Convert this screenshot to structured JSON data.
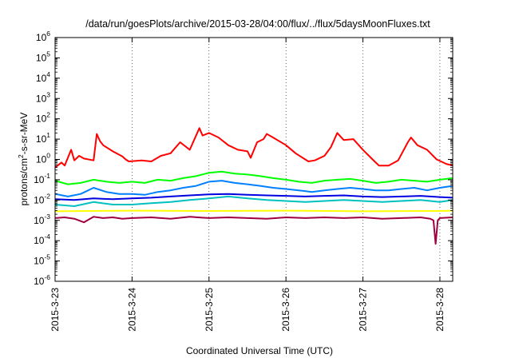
{
  "chart_data": {
    "type": "line",
    "title": "/data/run/goesPlots/archive/2015-03-28/04:00/flux/../flux/5daysMoonFluxes.txt",
    "xlabel": "Coordinated Universal Time (UTC)",
    "ylabel_parts": {
      "pre": "protons/cm",
      "sup": "2",
      "post": "-s-sr-MeV"
    },
    "y_scale": "log",
    "ylim": [
      1e-06,
      1000000.0
    ],
    "y_ticks": [
      {
        "base": "10",
        "exp": "-6"
      },
      {
        "base": "10",
        "exp": "-5"
      },
      {
        "base": "10",
        "exp": "-4"
      },
      {
        "base": "10",
        "exp": "-3"
      },
      {
        "base": "10",
        "exp": "-2"
      },
      {
        "base": "10",
        "exp": "-1"
      },
      {
        "base": "10",
        "exp": "0"
      },
      {
        "base": "10",
        "exp": "1"
      },
      {
        "base": "10",
        "exp": "2"
      },
      {
        "base": "10",
        "exp": "3"
      },
      {
        "base": "10",
        "exp": "4"
      },
      {
        "base": "10",
        "exp": "5"
      },
      {
        "base": "10",
        "exp": "6"
      }
    ],
    "x_ticks": [
      "2015-3-23",
      "2015-3-24",
      "2015-3-25",
      "2015-3-26",
      "2015-3-27",
      "2015-3-28"
    ],
    "xlim": [
      "2015-03-23T00:00",
      "2015-03-28T04:00"
    ],
    "grid": true,
    "series": [
      {
        "color": "#ff0000",
        "x": [
          "03-23 00:00",
          "03-23 02:00",
          "03-23 03:00",
          "03-23 05:00",
          "03-23 06:00",
          "03-23 07:30",
          "03-23 09:00",
          "03-23 12:00",
          "03-23 13:00",
          "03-23 14:00",
          "03-23 15:00",
          "03-23 18:00",
          "03-23 21:00",
          "03-23 22:00",
          "03-23 23:00",
          "03-24 03:00",
          "03-24 06:00",
          "03-24 09:00",
          "03-24 12:00",
          "03-24 15:00",
          "03-24 18:00",
          "03-24 21:00",
          "03-24 22:00",
          "03-25 00:00",
          "03-25 03:00",
          "03-25 06:00",
          "03-25 09:00",
          "03-25 12:00",
          "03-25 13:00",
          "03-25 15:00",
          "03-25 17:00",
          "03-25 18:00",
          "03-25 20:00",
          "03-26 00:00",
          "03-26 03:00",
          "03-26 06:00",
          "03-26 07:00",
          "03-26 09:00",
          "03-26 12:00",
          "03-26 14:00",
          "03-26 16:00",
          "03-26 18:00",
          "03-26 21:00",
          "03-27 00:00",
          "03-27 03:00",
          "03-27 05:00",
          "03-27 08:00",
          "03-27 11:00",
          "03-27 14:00",
          "03-27 15:00",
          "03-27 17:00",
          "03-27 20:00",
          "03-27 23:00",
          "03-28 02:00",
          "03-28 04:00"
        ],
        "values": [
          0.4,
          0.7,
          0.5,
          3,
          0.9,
          1.5,
          1.1,
          0.9,
          18,
          8,
          5,
          2.5,
          1.4,
          1,
          0.8,
          0.9,
          0.8,
          1.5,
          2,
          7,
          3,
          35,
          15,
          20,
          12,
          5,
          3,
          2.5,
          1.2,
          7,
          10,
          18,
          12,
          5,
          2,
          1,
          0.8,
          0.9,
          1.5,
          4,
          20,
          9,
          10,
          3,
          1,
          0.5,
          0.5,
          0.9,
          7,
          12,
          5,
          3,
          1,
          0.6,
          0.5
        ]
      },
      {
        "color": "#00ff00",
        "x": [
          "03-23 00:00",
          "03-23 04:00",
          "03-23 08:00",
          "03-23 12:00",
          "03-23 16:00",
          "03-23 20:00",
          "03-24 00:00",
          "03-24 04:00",
          "03-24 08:00",
          "03-24 12:00",
          "03-24 16:00",
          "03-24 20:00",
          "03-25 00:00",
          "03-25 04:00",
          "03-25 08:00",
          "03-25 12:00",
          "03-25 16:00",
          "03-25 20:00",
          "03-26 00:00",
          "03-26 04:00",
          "03-26 08:00",
          "03-26 12:00",
          "03-26 16:00",
          "03-26 20:00",
          "03-27 00:00",
          "03-27 04:00",
          "03-27 08:00",
          "03-27 12:00",
          "03-27 16:00",
          "03-27 20:00",
          "03-28 00:00",
          "03-28 04:00"
        ],
        "values": [
          0.09,
          0.06,
          0.07,
          0.1,
          0.08,
          0.07,
          0.08,
          0.07,
          0.1,
          0.09,
          0.12,
          0.15,
          0.22,
          0.25,
          0.2,
          0.18,
          0.15,
          0.12,
          0.1,
          0.08,
          0.07,
          0.09,
          0.1,
          0.11,
          0.09,
          0.07,
          0.08,
          0.1,
          0.09,
          0.08,
          0.1,
          0.12
        ]
      },
      {
        "color": "#0080ff",
        "x": [
          "03-23 00:00",
          "03-23 04:00",
          "03-23 08:00",
          "03-23 12:00",
          "03-23 16:00",
          "03-23 20:00",
          "03-24 00:00",
          "03-24 04:00",
          "03-24 08:00",
          "03-24 12:00",
          "03-24 16:00",
          "03-24 20:00",
          "03-25 00:00",
          "03-25 04:00",
          "03-25 08:00",
          "03-25 12:00",
          "03-25 16:00",
          "03-25 20:00",
          "03-26 00:00",
          "03-26 04:00",
          "03-26 08:00",
          "03-26 12:00",
          "03-26 16:00",
          "03-26 20:00",
          "03-27 00:00",
          "03-27 04:00",
          "03-27 08:00",
          "03-27 12:00",
          "03-27 16:00",
          "03-27 20:00",
          "03-28 00:00",
          "03-28 04:00"
        ],
        "values": [
          0.02,
          0.015,
          0.02,
          0.04,
          0.025,
          0.02,
          0.02,
          0.018,
          0.025,
          0.03,
          0.04,
          0.05,
          0.08,
          0.09,
          0.07,
          0.06,
          0.05,
          0.04,
          0.035,
          0.03,
          0.025,
          0.03,
          0.035,
          0.04,
          0.035,
          0.03,
          0.03,
          0.035,
          0.04,
          0.03,
          0.04,
          0.05
        ]
      },
      {
        "color": "#00c0c0",
        "x": [
          "03-23 00:00",
          "03-23 06:00",
          "03-23 12:00",
          "03-23 18:00",
          "03-24 00:00",
          "03-24 06:00",
          "03-24 12:00",
          "03-24 18:00",
          "03-25 00:00",
          "03-25 06:00",
          "03-25 12:00",
          "03-25 18:00",
          "03-26 00:00",
          "03-26 06:00",
          "03-26 12:00",
          "03-26 18:00",
          "03-27 00:00",
          "03-27 06:00",
          "03-27 12:00",
          "03-27 18:00",
          "03-28 00:00",
          "03-28 04:00"
        ],
        "values": [
          0.006,
          0.005,
          0.008,
          0.006,
          0.006,
          0.007,
          0.008,
          0.01,
          0.012,
          0.015,
          0.012,
          0.01,
          0.009,
          0.008,
          0.009,
          0.01,
          0.009,
          0.008,
          0.009,
          0.01,
          0.008,
          0.01
        ]
      },
      {
        "color": "#0000e0",
        "x": [
          "03-23 00:00",
          "03-23 06:00",
          "03-23 12:00",
          "03-23 18:00",
          "03-24 00:00",
          "03-24 06:00",
          "03-24 12:00",
          "03-24 18:00",
          "03-25 00:00",
          "03-25 06:00",
          "03-25 12:00",
          "03-25 18:00",
          "03-26 00:00",
          "03-26 06:00",
          "03-26 12:00",
          "03-26 18:00",
          "03-27 00:00",
          "03-27 06:00",
          "03-27 12:00",
          "03-27 18:00",
          "03-28 00:00",
          "03-28 04:00"
        ],
        "values": [
          0.011,
          0.01,
          0.012,
          0.011,
          0.012,
          0.013,
          0.015,
          0.017,
          0.019,
          0.02,
          0.018,
          0.017,
          0.016,
          0.015,
          0.016,
          0.017,
          0.015,
          0.014,
          0.015,
          0.016,
          0.014,
          0.013
        ]
      },
      {
        "color": "#ffff00",
        "x": [
          "03-23 00:00",
          "03-24 00:00",
          "03-25 00:00",
          "03-26 00:00",
          "03-27 00:00",
          "03-28 00:00",
          "03-28 04:00"
        ],
        "values": [
          0.0028,
          0.003,
          0.0029,
          0.003,
          0.0028,
          0.0029,
          0.003
        ]
      },
      {
        "color": "#a00040",
        "x": [
          "03-23 00:00",
          "03-23 03:00",
          "03-23 06:00",
          "03-23 09:00",
          "03-23 12:00",
          "03-23 15:00",
          "03-23 18:00",
          "03-23 21:00",
          "03-24 00:00",
          "03-24 06:00",
          "03-24 12:00",
          "03-24 18:00",
          "03-25 00:00",
          "03-25 06:00",
          "03-25 12:00",
          "03-25 18:00",
          "03-26 00:00",
          "03-26 06:00",
          "03-26 12:00",
          "03-26 18:00",
          "03-27 00:00",
          "03-27 06:00",
          "03-27 12:00",
          "03-27 18:00",
          "03-27 21:00",
          "03-27 22:00",
          "03-27 22:40",
          "03-27 23:20",
          "03-28 00:00",
          "03-28 04:00"
        ],
        "values": [
          0.0013,
          0.0014,
          0.0012,
          0.0008,
          0.0015,
          0.0013,
          0.0014,
          0.0012,
          0.0013,
          0.0014,
          0.0012,
          0.0015,
          0.0013,
          0.0014,
          0.0013,
          0.0012,
          0.0014,
          0.0013,
          0.0014,
          0.0013,
          0.0014,
          0.0012,
          0.0013,
          0.0014,
          0.0012,
          0.001,
          7e-05,
          0.001,
          0.0013,
          0.0014
        ]
      }
    ]
  }
}
